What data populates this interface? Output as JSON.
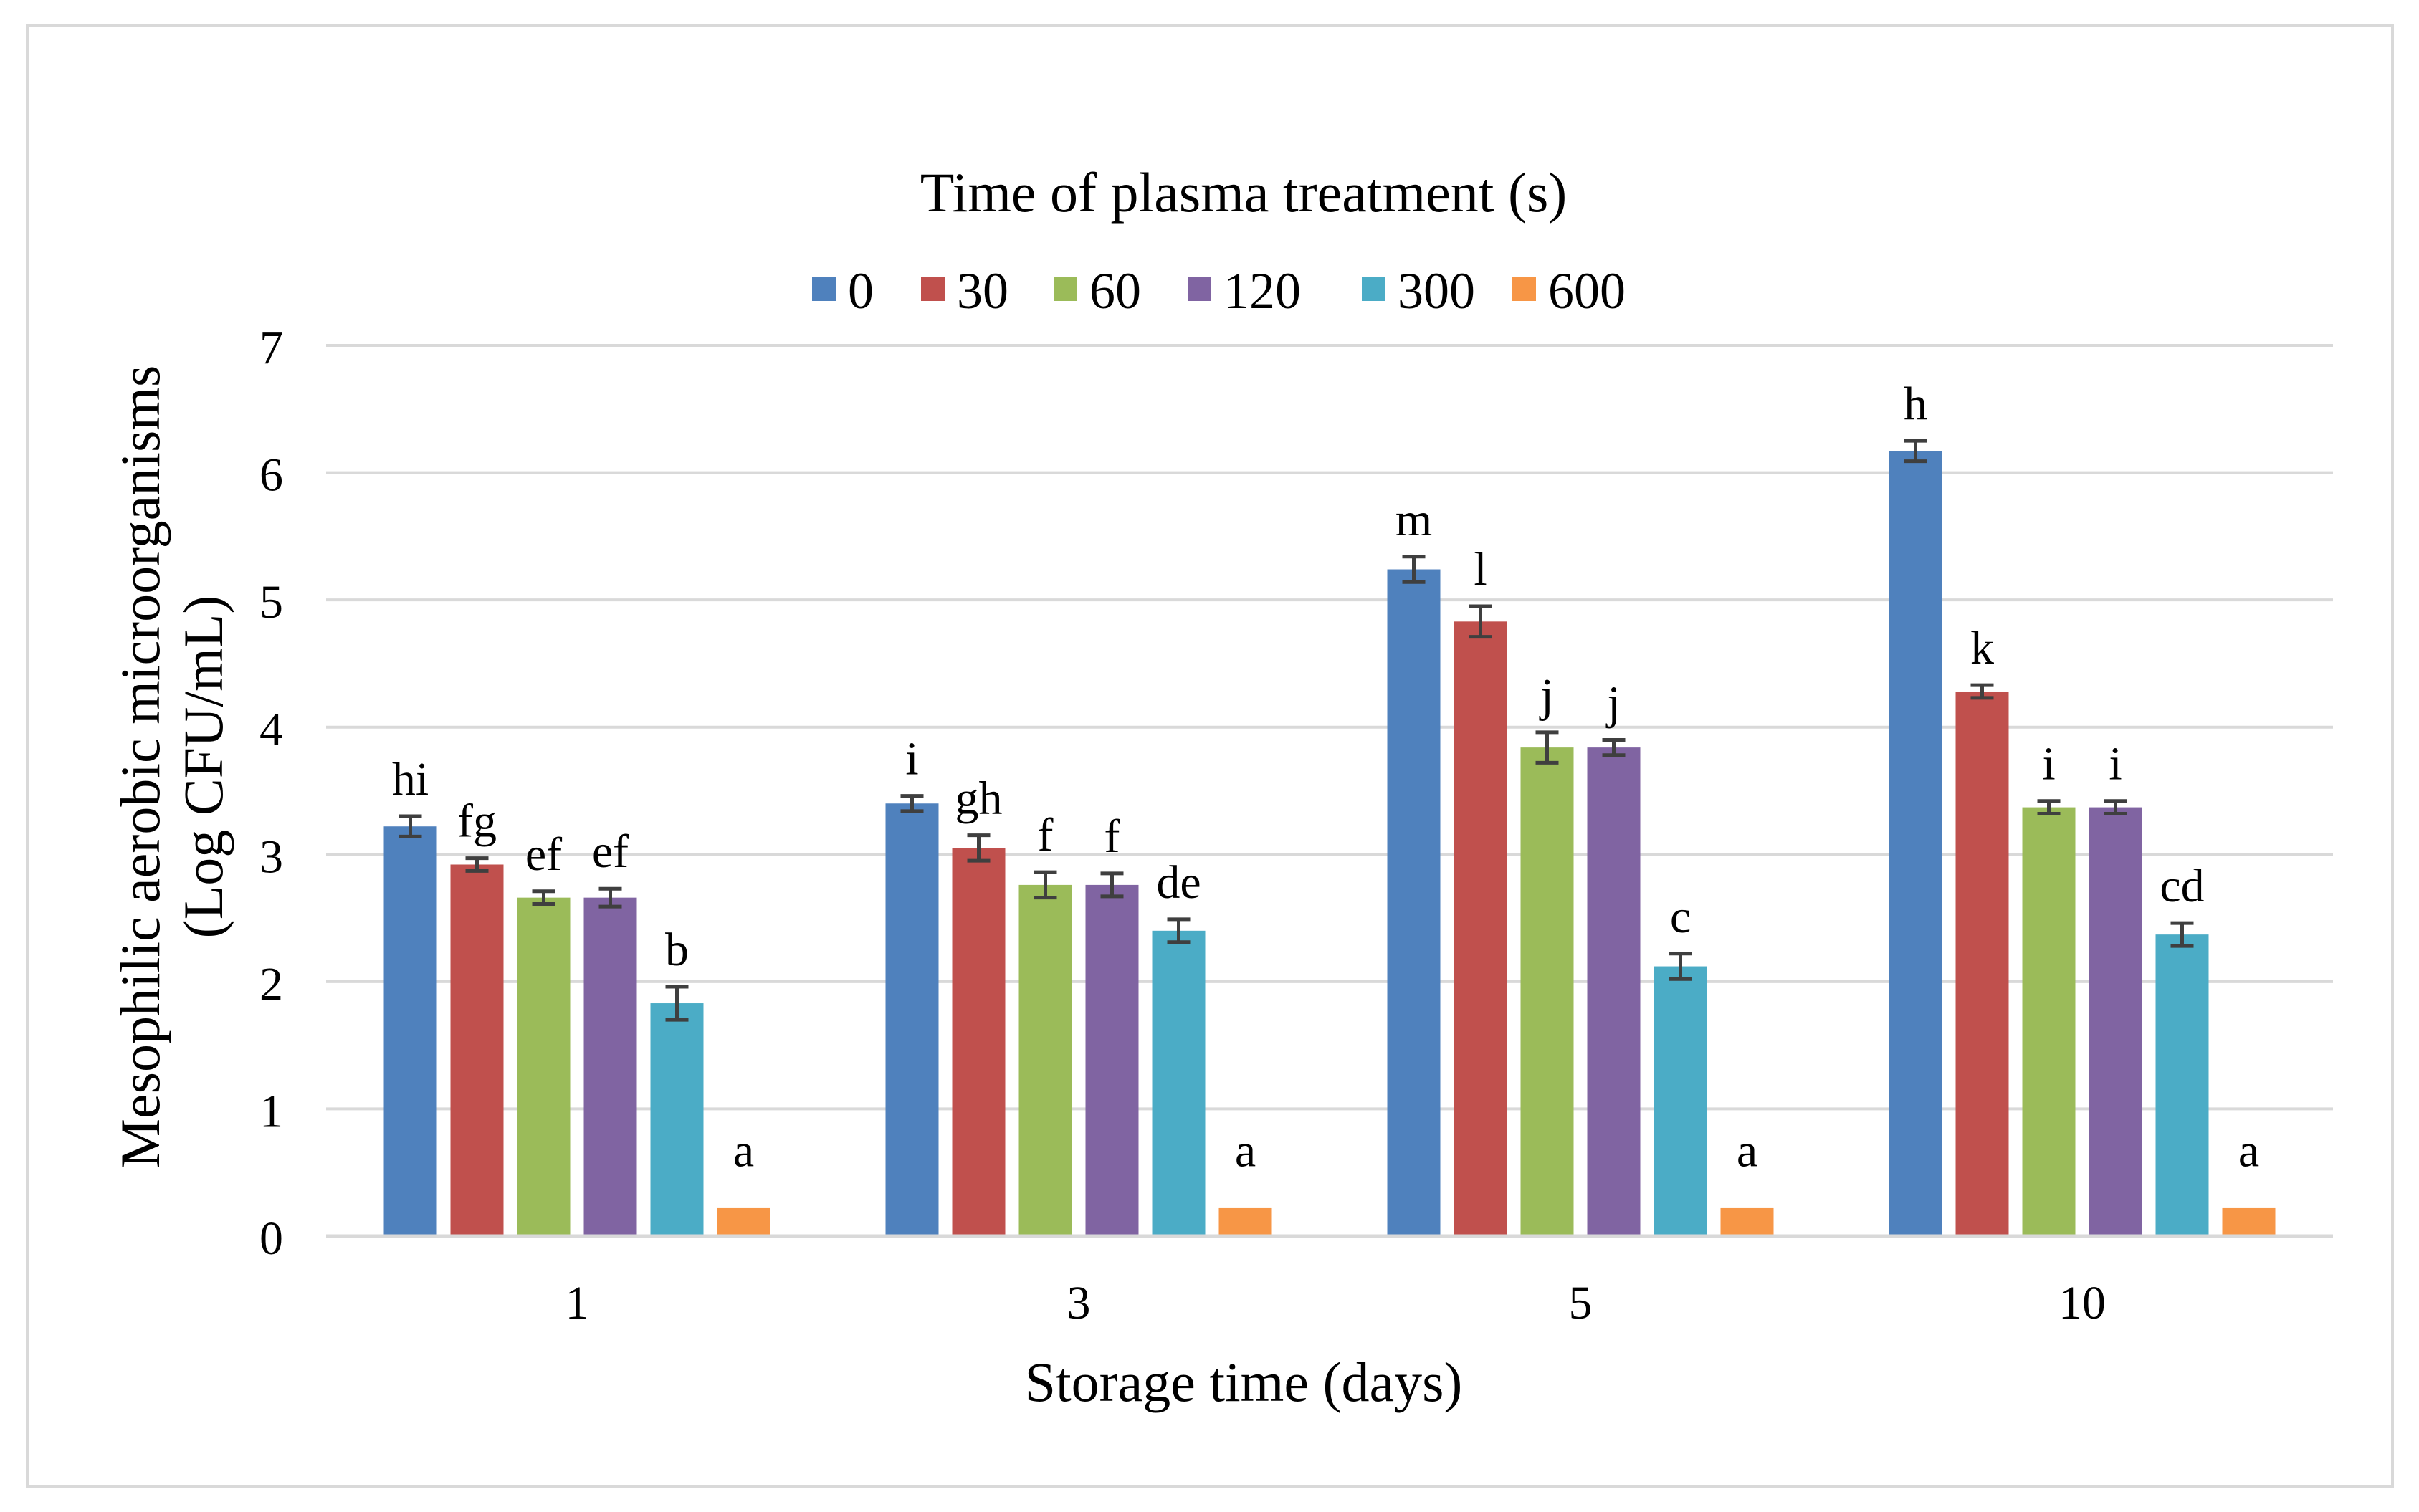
{
  "chart_data": {
    "type": "bar",
    "title": "",
    "legend_title": "Time of plasma treatment (s)",
    "legend_position": "top-center",
    "xlabel": "Storage time (days)",
    "ylabel_line1": "Mesophilic aerobic microorganisms",
    "ylabel_line2": "(Log CFU/mL)",
    "ylim": [
      0,
      7
    ],
    "yticks": [
      "0",
      "1",
      "2",
      "3",
      "4",
      "5",
      "6",
      "7"
    ],
    "categories": [
      "1",
      "3",
      "5",
      "10"
    ],
    "grid": true,
    "series": [
      {
        "name": "0",
        "color": "#4F81BD",
        "values": [
          3.22,
          3.4,
          5.24,
          6.17
        ],
        "errors": [
          0.08,
          0.06,
          0.1,
          0.08
        ],
        "letters": [
          "hi",
          "i",
          "m",
          "h"
        ]
      },
      {
        "name": "30",
        "color": "#C0504D",
        "values": [
          2.92,
          3.05,
          4.83,
          4.28
        ],
        "errors": [
          0.05,
          0.1,
          0.12,
          0.05
        ],
        "letters": [
          "fg",
          "gh",
          "l",
          "k"
        ]
      },
      {
        "name": "60",
        "color": "#9BBB59",
        "values": [
          2.66,
          2.76,
          3.84,
          3.37
        ],
        "errors": [
          0.05,
          0.1,
          0.12,
          0.05
        ],
        "letters": [
          "ef",
          "f",
          "j",
          "i"
        ]
      },
      {
        "name": "120",
        "color": "#8064A2",
        "values": [
          2.66,
          2.76,
          3.84,
          3.37
        ],
        "errors": [
          0.07,
          0.09,
          0.06,
          0.05
        ],
        "letters": [
          "ef",
          "f",
          "j",
          "i"
        ]
      },
      {
        "name": "300",
        "color": "#4BACC6",
        "values": [
          1.83,
          2.4,
          2.12,
          2.37
        ],
        "errors": [
          0.13,
          0.09,
          0.1,
          0.09
        ],
        "letters": [
          "b",
          "de",
          "c",
          "cd"
        ]
      },
      {
        "name": "600",
        "color": "#F79646",
        "values": [
          0.22,
          0.22,
          0.22,
          0.22
        ],
        "errors": [
          0,
          0,
          0,
          0
        ],
        "letters": [
          "a",
          "a",
          "a",
          "a"
        ]
      }
    ]
  }
}
